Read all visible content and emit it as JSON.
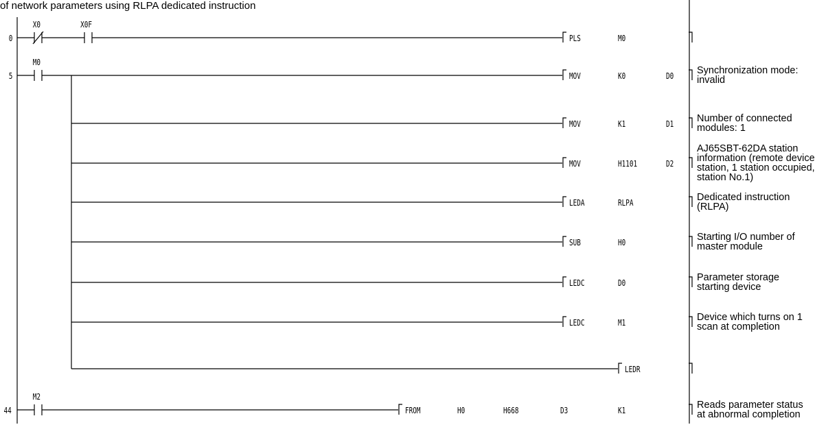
{
  "title": "of network parameters using RLPA dedicated instruction",
  "rungs": [
    {
      "step": "0",
      "contacts": [
        {
          "device": "X0",
          "type": "NC"
        },
        {
          "device": "X0F",
          "type": "NO"
        }
      ],
      "instruction": {
        "mnemonic": "PLS",
        "operands": [
          "M0"
        ]
      },
      "comment": []
    },
    {
      "step": "5",
      "contacts": [
        {
          "device": "M0",
          "type": "NO"
        }
      ],
      "branches": [
        {
          "mnemonic": "MOV",
          "operands": [
            "K0",
            "D0"
          ],
          "comment": [
            "Synchronization mode:",
            "invalid"
          ]
        },
        {
          "mnemonic": "MOV",
          "operands": [
            "K1",
            "D1"
          ],
          "comment": [
            "Number of connected",
            "modules: 1"
          ]
        },
        {
          "mnemonic": "MOV",
          "operands": [
            "H1101",
            "D2"
          ],
          "comment": [
            "AJ65SBT-62DA station",
            "information (remote device",
            "station, 1 station occupied,",
            "station No.1)"
          ]
        },
        {
          "mnemonic": "LEDA",
          "operands": [
            "RLPA"
          ],
          "comment": [
            "Dedicated instruction",
            "(RLPA)"
          ]
        },
        {
          "mnemonic": "SUB",
          "operands": [
            "H0"
          ],
          "comment": [
            "Starting I/O number of",
            "master module"
          ]
        },
        {
          "mnemonic": "LEDC",
          "operands": [
            "D0"
          ],
          "comment": [
            "Parameter storage",
            "starting device"
          ]
        },
        {
          "mnemonic": "LEDC",
          "operands": [
            "M1"
          ],
          "comment": [
            "Device which turns on 1",
            "scan at completion"
          ]
        },
        {
          "mnemonic": "LEDR",
          "operands": [],
          "comment": []
        }
      ]
    },
    {
      "step": "44",
      "contacts": [
        {
          "device": "M2",
          "type": "NO"
        }
      ],
      "instruction": {
        "mnemonic": "FROM",
        "operands": [
          "H0",
          "H668",
          "D3",
          "K1"
        ]
      },
      "comment": [
        "Reads parameter status",
        "at abnormal completion"
      ]
    }
  ]
}
